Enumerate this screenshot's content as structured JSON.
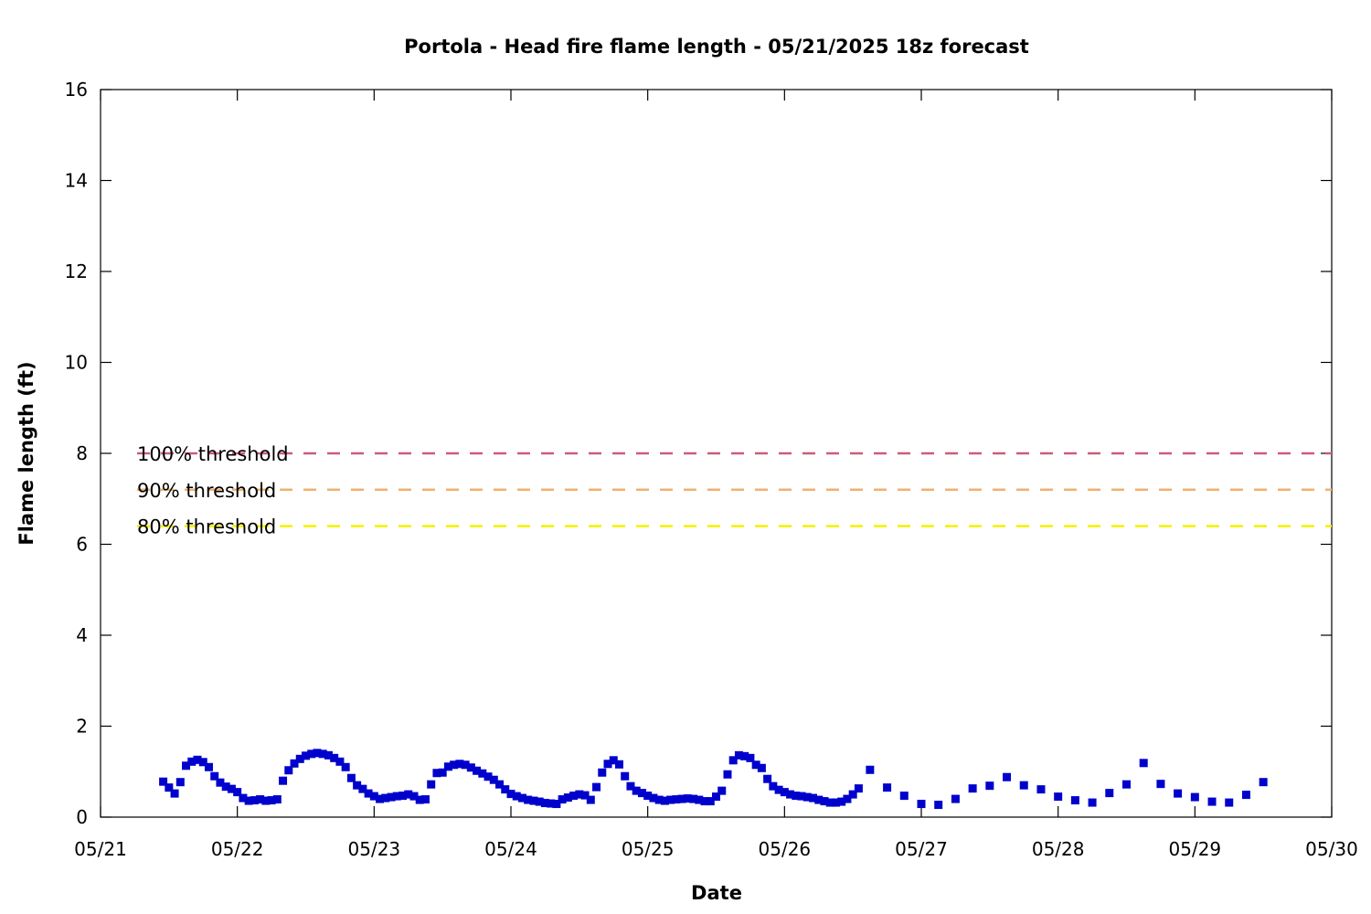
{
  "chart_data": {
    "type": "scatter",
    "title": "Portola - Head fire flame length - 05/21/2025 18z forecast",
    "xlabel": "Date",
    "ylabel": "Flame length (ft)",
    "xlim": [
      "05/21",
      "05/30"
    ],
    "ylim": [
      0,
      16
    ],
    "x_tick_labels": [
      "05/21",
      "05/22",
      "05/23",
      "05/24",
      "05/25",
      "05/26",
      "05/27",
      "05/28",
      "05/29",
      "05/30"
    ],
    "y_ticks": [
      0,
      2,
      4,
      6,
      8,
      10,
      12,
      14,
      16
    ],
    "grid": false,
    "legend_position": "left, inside plot",
    "point_color": "#0000cc",
    "thresholds": [
      {
        "label": "100% threshold",
        "value": 8.0,
        "color": "#d05a7a"
      },
      {
        "label": "90% threshold",
        "value": 7.2,
        "color": "#f0b070"
      },
      {
        "label": "80% threshold",
        "value": 6.4,
        "color": "#f2f200"
      }
    ],
    "series": [
      {
        "x_start": "05/21 11:00",
        "x_step_hours": 1,
        "values": [
          0.78,
          0.65,
          0.52,
          0.77,
          1.13,
          1.22,
          1.26,
          1.21,
          1.1,
          0.9,
          0.76,
          0.67,
          0.62,
          0.55,
          0.42,
          0.36,
          0.37,
          0.39,
          0.36,
          0.37,
          0.39,
          0.8,
          1.03,
          1.18,
          1.28,
          1.35,
          1.39,
          1.41,
          1.39,
          1.36,
          1.3,
          1.22,
          1.1,
          0.86,
          0.7,
          0.62,
          0.52,
          0.46,
          0.4,
          0.42,
          0.44,
          0.46,
          0.47,
          0.5,
          0.46,
          0.38,
          0.39,
          0.72,
          0.97,
          0.98,
          1.11,
          1.15,
          1.17,
          1.15,
          1.09,
          1.02,
          0.96,
          0.89,
          0.82,
          0.72,
          0.61,
          0.51,
          0.46,
          0.42,
          0.38,
          0.36,
          0.34,
          0.31,
          0.3,
          0.29,
          0.39,
          0.43,
          0.47,
          0.5,
          0.48,
          0.38,
          0.66,
          0.98,
          1.17,
          1.25,
          1.16,
          0.9,
          0.68,
          0.58,
          0.53,
          0.47,
          0.42,
          0.38,
          0.36,
          0.38,
          0.39,
          0.4,
          0.41,
          0.4,
          0.38,
          0.35,
          0.35,
          0.45,
          0.58,
          0.94,
          1.25,
          1.36,
          1.34,
          1.3,
          1.15,
          1.08,
          0.84,
          0.68,
          0.6,
          0.55,
          0.5,
          0.47,
          0.46,
          0.44,
          0.42,
          0.38,
          0.35,
          0.32,
          0.32,
          0.34,
          0.4,
          0.5,
          0.63
        ]
      },
      {
        "x_start": "05/26 15:00",
        "x_step_hours": 3,
        "values": [
          1.04,
          0.65,
          0.47,
          0.29,
          0.27,
          0.4,
          0.63,
          0.69,
          0.88,
          0.7,
          0.61,
          0.45,
          0.37,
          0.32,
          0.53,
          0.72,
          1.19,
          0.73,
          0.52,
          0.44,
          0.34,
          0.32,
          0.49,
          0.77
        ]
      }
    ]
  }
}
